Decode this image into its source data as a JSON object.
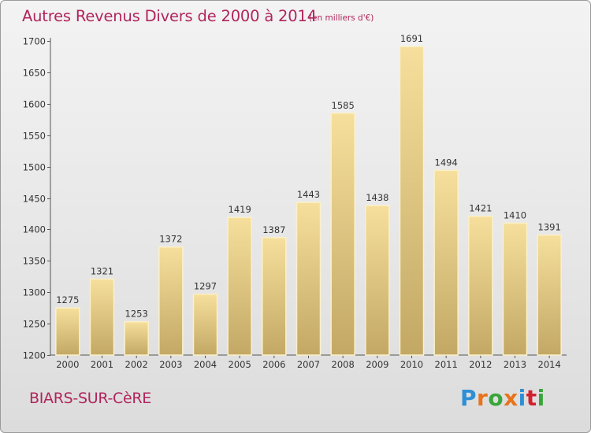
{
  "title": "Autres Revenus Divers de 2000 à 2014",
  "subtitle": "(en milliers d'€)",
  "commune": "BIARS-SUR-CèRE",
  "logo_text": "Proxiti",
  "colors": {
    "title": "#b0255c",
    "bar_light": "#f6df9c",
    "bar_dark": "#c3a865"
  },
  "chart_data": {
    "type": "bar",
    "categories": [
      "2000",
      "2001",
      "2002",
      "2003",
      "2004",
      "2005",
      "2006",
      "2007",
      "2008",
      "2009",
      "2010",
      "2011",
      "2012",
      "2013",
      "2014"
    ],
    "values": [
      1275,
      1321,
      1253,
      1372,
      1297,
      1419,
      1387,
      1443,
      1585,
      1438,
      1691,
      1494,
      1421,
      1410,
      1391
    ],
    "ylim": [
      1200,
      1700
    ],
    "yticks": [
      1200,
      1250,
      1300,
      1350,
      1400,
      1450,
      1500,
      1550,
      1600,
      1650,
      1700
    ],
    "grid": false,
    "data_labels": true
  }
}
